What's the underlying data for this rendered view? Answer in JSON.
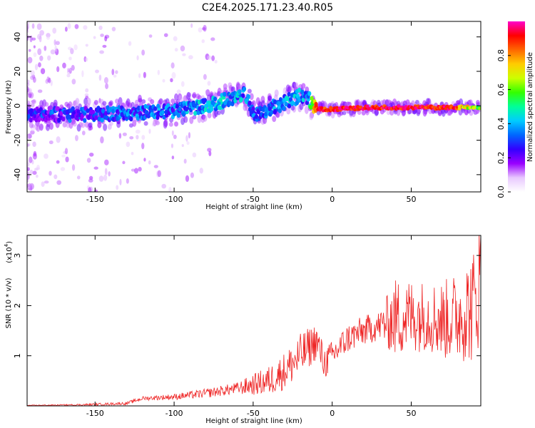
{
  "title": "C2E4.2025.171.23.40.R05",
  "chart_data": [
    {
      "type": "heatmap",
      "xlabel": "Height of straight line (km)",
      "ylabel": "Frequency (Hz)",
      "xlim": [
        -193,
        94
      ],
      "ylim": [
        -50,
        49
      ],
      "xticks": [
        -150,
        -100,
        -50,
        0,
        50
      ],
      "yticks": [
        -40,
        -20,
        0,
        20,
        40
      ],
      "colorbar": {
        "label": "Normalized spectral amplitude",
        "range": [
          0.0,
          1.0
        ],
        "ticks": [
          0.0,
          0.2,
          0.4,
          0.6,
          0.8
        ],
        "tick_labels": [
          "0.0",
          "0.2",
          "0.4",
          "0.6",
          "0.8"
        ],
        "colormap": [
          "#ffffff",
          "#e8c8ff",
          "#9900ff",
          "#3300ff",
          "#0066ff",
          "#00ccff",
          "#00ff99",
          "#33ff00",
          "#ccff00",
          "#ffcc00",
          "#ff6600",
          "#ff0000",
          "#ff00cc"
        ]
      },
      "ridge": {
        "x": [
          -193,
          -175,
          -150,
          -125,
          -100,
          -75,
          -55,
          -50,
          -40,
          -30,
          -20,
          -15,
          -10,
          -5,
          0,
          25,
          50,
          75,
          94
        ],
        "frequency": [
          -5,
          -5,
          -5,
          -4,
          -3,
          1,
          7,
          -5,
          -2,
          2,
          6,
          4,
          -2,
          -2,
          -2,
          -1,
          -1,
          -1,
          -1
        ],
        "amplitude": [
          0.22,
          0.25,
          0.28,
          0.3,
          0.32,
          0.38,
          0.35,
          0.3,
          0.32,
          0.36,
          0.35,
          0.35,
          0.85,
          0.9,
          0.9,
          0.92,
          0.92,
          0.9,
          0.5
        ]
      }
    },
    {
      "type": "line",
      "xlabel": "Height of straight line (km)",
      "ylabel": "SNR (10 * v/v)",
      "scale_note": "(x10",
      "scale_exp": "4",
      "xlim": [
        -193,
        94
      ],
      "ylim": [
        0,
        3.4
      ],
      "xticks": [
        -150,
        -100,
        -50,
        0,
        50
      ],
      "yticks": [
        1,
        2,
        3
      ],
      "color": "#ee2222",
      "envelope": {
        "x": [
          -193,
          -160,
          -130,
          -120,
          -100,
          -80,
          -60,
          -40,
          -30,
          -20,
          -10,
          -5,
          0,
          10,
          20,
          30,
          40,
          50,
          60,
          70,
          80,
          90,
          94
        ],
        "value": [
          0.01,
          0.02,
          0.05,
          0.15,
          0.18,
          0.25,
          0.35,
          0.5,
          0.7,
          1.0,
          1.3,
          0.85,
          1.0,
          1.35,
          1.5,
          1.6,
          1.75,
          1.8,
          1.8,
          1.7,
          1.8,
          2.0,
          2.6
        ]
      },
      "noise_amplitude": {
        "x": [
          -193,
          -130,
          -100,
          -60,
          -40,
          -20,
          0,
          30,
          40,
          60,
          80,
          94
        ],
        "value": [
          0.005,
          0.03,
          0.06,
          0.12,
          0.3,
          0.45,
          0.3,
          0.3,
          0.8,
          0.7,
          0.9,
          1.3
        ]
      }
    }
  ]
}
